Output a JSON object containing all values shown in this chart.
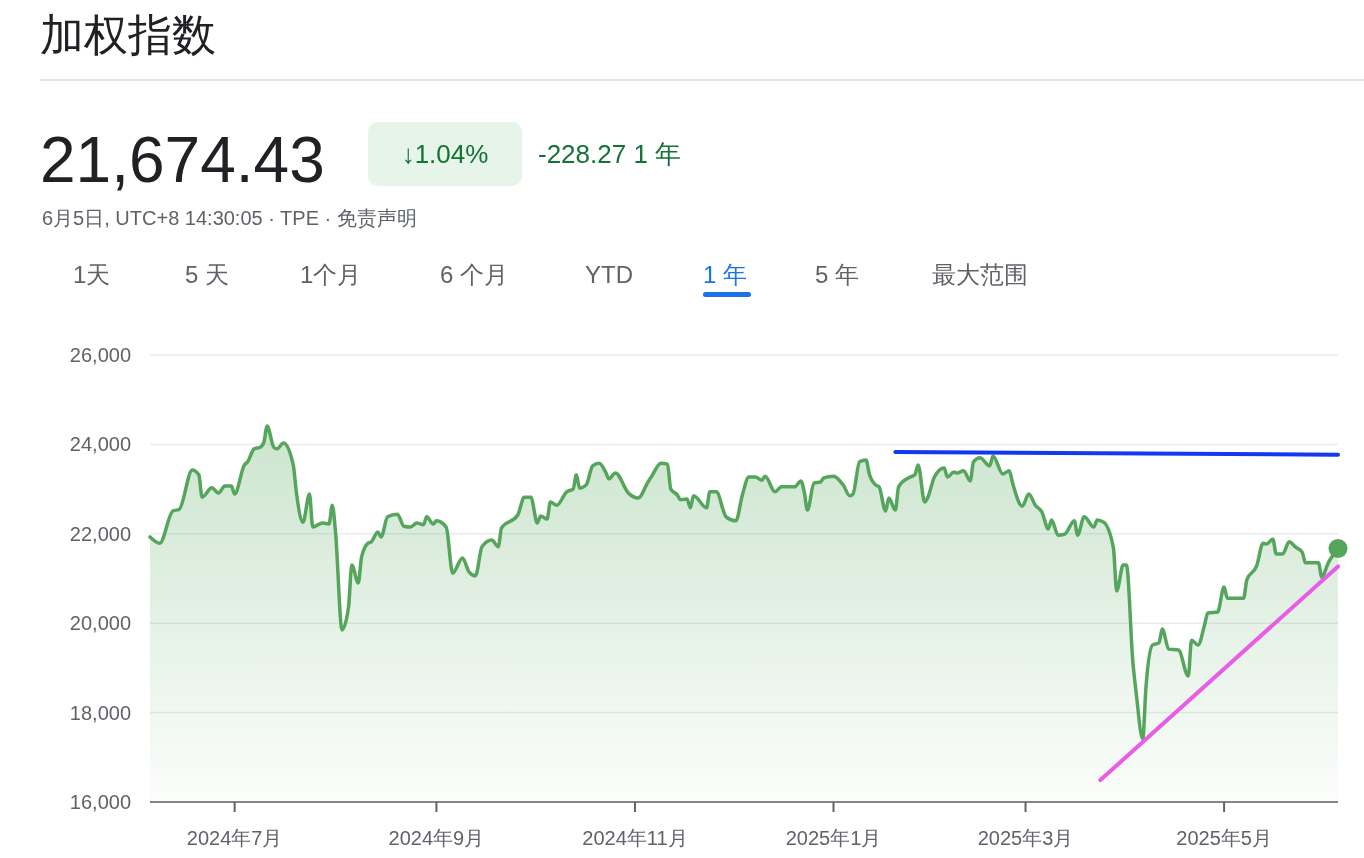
{
  "chart_data": {
    "type": "area",
    "title": "加权指数",
    "subtitle": "6月5日, UTC+8 14:30:05 · TPE · 免责声明",
    "annotations": [
      "21,674.43",
      "↓1.04%",
      "-228.27 1 年",
      "1天",
      "5 天",
      "1个月",
      "6 个月",
      "YTD",
      "1 年",
      "5 年",
      "最大范围"
    ],
    "xlim": [
      "2024-06-05",
      "2025-06-05"
    ],
    "xticks": [
      {
        "value": "2024-07-01",
        "label": "2024年7月"
      },
      {
        "value": "2024-09-01",
        "label": "2024年9月"
      },
      {
        "value": "2024-11-01",
        "label": "2024年11月"
      },
      {
        "value": "2025-01-01",
        "label": "2025年1月"
      },
      {
        "value": "2025-03-01",
        "label": "2025年3月"
      },
      {
        "value": "2025-05-01",
        "label": "2025年5月"
      }
    ],
    "ylim": [
      16000,
      26000
    ],
    "yticks": [
      {
        "value": 16000,
        "label": "16,000"
      },
      {
        "value": 18000,
        "label": "18,000"
      },
      {
        "value": 20000,
        "label": "20,000"
      },
      {
        "value": 22000,
        "label": "22,000"
      },
      {
        "value": 24000,
        "label": "24,000"
      },
      {
        "value": 26000,
        "label": "26,000"
      }
    ],
    "grid": "y",
    "series": [
      {
        "color": "#55a65c",
        "marker": "none",
        "x": [
          "2024-06-05",
          "2024-06-08",
          "2024-06-12",
          "2024-06-14",
          "2024-06-18",
          "2024-06-20",
          "2024-06-21",
          "2024-06-24",
          "2024-06-26",
          "2024-06-28",
          "2024-06-30",
          "2024-07-01",
          "2024-07-04",
          "2024-07-05",
          "2024-07-07",
          "2024-07-09",
          "2024-07-10",
          "2024-07-11",
          "2024-07-13",
          "2024-07-14",
          "2024-07-16",
          "2024-07-19",
          "2024-07-20",
          "2024-07-22",
          "2024-07-24",
          "2024-07-25",
          "2024-07-28",
          "2024-07-30",
          "2024-07-31",
          "2024-08-01",
          "2024-08-03",
          "2024-08-05",
          "2024-08-06",
          "2024-08-08",
          "2024-08-09",
          "2024-08-11",
          "2024-08-12",
          "2024-08-14",
          "2024-08-15",
          "2024-08-17",
          "2024-08-20",
          "2024-08-22",
          "2024-08-24",
          "2024-08-26",
          "2024-08-28",
          "2024-08-29",
          "2024-08-31",
          "2024-09-01",
          "2024-09-04",
          "2024-09-06",
          "2024-09-09",
          "2024-09-11",
          "2024-09-13",
          "2024-09-15",
          "2024-09-18",
          "2024-09-20",
          "2024-09-21",
          "2024-09-26",
          "2024-09-28",
          "2024-09-30",
          "2024-10-02",
          "2024-10-03",
          "2024-10-05",
          "2024-10-06",
          "2024-10-08",
          "2024-10-11",
          "2024-10-13",
          "2024-10-14",
          "2024-10-15",
          "2024-10-17",
          "2024-10-19",
          "2024-10-21",
          "2024-10-23",
          "2024-10-24",
          "2024-10-26",
          "2024-10-30",
          "2024-11-02",
          "2024-11-05",
          "2024-11-06",
          "2024-11-09",
          "2024-11-11",
          "2024-11-12",
          "2024-11-14",
          "2024-11-15",
          "2024-11-17",
          "2024-11-18",
          "2024-11-19",
          "2024-11-23",
          "2024-11-24",
          "2024-11-26",
          "2024-11-29",
          "2024-12-02",
          "2024-12-04",
          "2024-12-06",
          "2024-12-08",
          "2024-12-10",
          "2024-12-11",
          "2024-12-14",
          "2024-12-16",
          "2024-12-20",
          "2024-12-22",
          "2024-12-23",
          "2024-12-24",
          "2024-12-26",
          "2024-12-28",
          "2024-12-29",
          "2025-01-01",
          "2025-01-04",
          "2025-01-06",
          "2025-01-07",
          "2025-01-09",
          "2025-01-11",
          "2025-01-12",
          "2025-01-14",
          "2025-01-15",
          "2025-01-17",
          "2025-01-18",
          "2025-01-20",
          "2025-01-21",
          "2025-01-24",
          "2025-01-26",
          "2025-01-27",
          "2025-01-29",
          "2025-01-30",
          "2025-02-01",
          "2025-02-04",
          "2025-02-05",
          "2025-02-07",
          "2025-02-08",
          "2025-02-10",
          "2025-02-12",
          "2025-02-13",
          "2025-02-15",
          "2025-02-18",
          "2025-02-19",
          "2025-02-22",
          "2025-02-24",
          "2025-02-25",
          "2025-02-28",
          "2025-03-02",
          "2025-03-04",
          "2025-03-06",
          "2025-03-08",
          "2025-03-09",
          "2025-03-11",
          "2025-03-13",
          "2025-03-16",
          "2025-03-17",
          "2025-03-19",
          "2025-03-22",
          "2025-03-23",
          "2025-03-25",
          "2025-03-28",
          "2025-03-29",
          "2025-03-31",
          "2025-04-01",
          "2025-04-03",
          "2025-04-04",
          "2025-04-06",
          "2025-04-07",
          "2025-04-09",
          "2025-04-11",
          "2025-04-12",
          "2025-04-14",
          "2025-04-17",
          "2025-04-20",
          "2025-04-21",
          "2025-04-23",
          "2025-04-25",
          "2025-04-26",
          "2025-04-29",
          "2025-05-01",
          "2025-05-02",
          "2025-05-07",
          "2025-05-08",
          "2025-05-11",
          "2025-05-13",
          "2025-05-14",
          "2025-05-16",
          "2025-05-17",
          "2025-05-19",
          "2025-05-21",
          "2025-05-23",
          "2025-05-25",
          "2025-05-26",
          "2025-05-30",
          "2025-05-31",
          "2025-06-02",
          "2025-06-05"
        ],
        "values": [
          21930,
          21790,
          22510,
          22550,
          23430,
          23320,
          22820,
          23030,
          22910,
          23070,
          23070,
          22890,
          23540,
          23610,
          23900,
          23940,
          24050,
          24410,
          23940,
          23900,
          24030,
          23540,
          22910,
          22260,
          22890,
          22150,
          22240,
          22220,
          22640,
          22040,
          19850,
          20360,
          21300,
          20900,
          21480,
          21790,
          21820,
          22040,
          21930,
          22380,
          22440,
          22170,
          22150,
          22240,
          22200,
          22380,
          22220,
          22290,
          22150,
          21120,
          21460,
          21150,
          21060,
          21710,
          21860,
          21710,
          22130,
          22420,
          22820,
          22820,
          22240,
          22400,
          22330,
          22710,
          22640,
          22940,
          23000,
          23320,
          23020,
          23090,
          23520,
          23580,
          23380,
          23230,
          23360,
          22910,
          22800,
          23160,
          23270,
          23580,
          23560,
          23000,
          22870,
          22760,
          22780,
          22580,
          22850,
          22580,
          22940,
          22940,
          22380,
          22290,
          22870,
          23270,
          23270,
          23200,
          23290,
          22940,
          23050,
          23050,
          23180,
          22940,
          22530,
          23140,
          23160,
          23250,
          23290,
          23090,
          22850,
          22890,
          23610,
          23650,
          23340,
          23090,
          23050,
          22510,
          22800,
          22530,
          23050,
          23250,
          23320,
          23540,
          22710,
          22820,
          23270,
          23470,
          23270,
          23380,
          23360,
          23410,
          23180,
          23610,
          23700,
          23520,
          23740,
          23340,
          23410,
          23140,
          22620,
          22890,
          22640,
          22490,
          22110,
          22310,
          21970,
          21990,
          22290,
          21970,
          22380,
          22150,
          22310,
          22260,
          21680,
          20720,
          21300,
          21300,
          19110,
          18440,
          17410,
          18570,
          19510,
          19560,
          19870,
          19420,
          19400,
          18820,
          19620,
          19510,
          19960,
          20230,
          20250,
          20810,
          20560,
          20560,
          20970,
          21280,
          21790,
          21770,
          21880,
          21550,
          21550,
          21820,
          21700,
          21590,
          21350,
          21350,
          21030,
          21350,
          21670
        ]
      },
      {
        "type": "line",
        "color": "#1438f0",
        "x": [
          "2025-01-20",
          "2025-06-05"
        ],
        "values": [
          23830,
          23770
        ]
      },
      {
        "type": "line",
        "color": "#e85ce8",
        "x": [
          "2025-03-24",
          "2025-06-05"
        ],
        "values": [
          16490,
          21270
        ]
      },
      {
        "type": "scatter",
        "color": "#55a65c",
        "marker": "circle",
        "x": [
          "2025-06-05"
        ],
        "values": [
          21670
        ]
      }
    ]
  }
}
